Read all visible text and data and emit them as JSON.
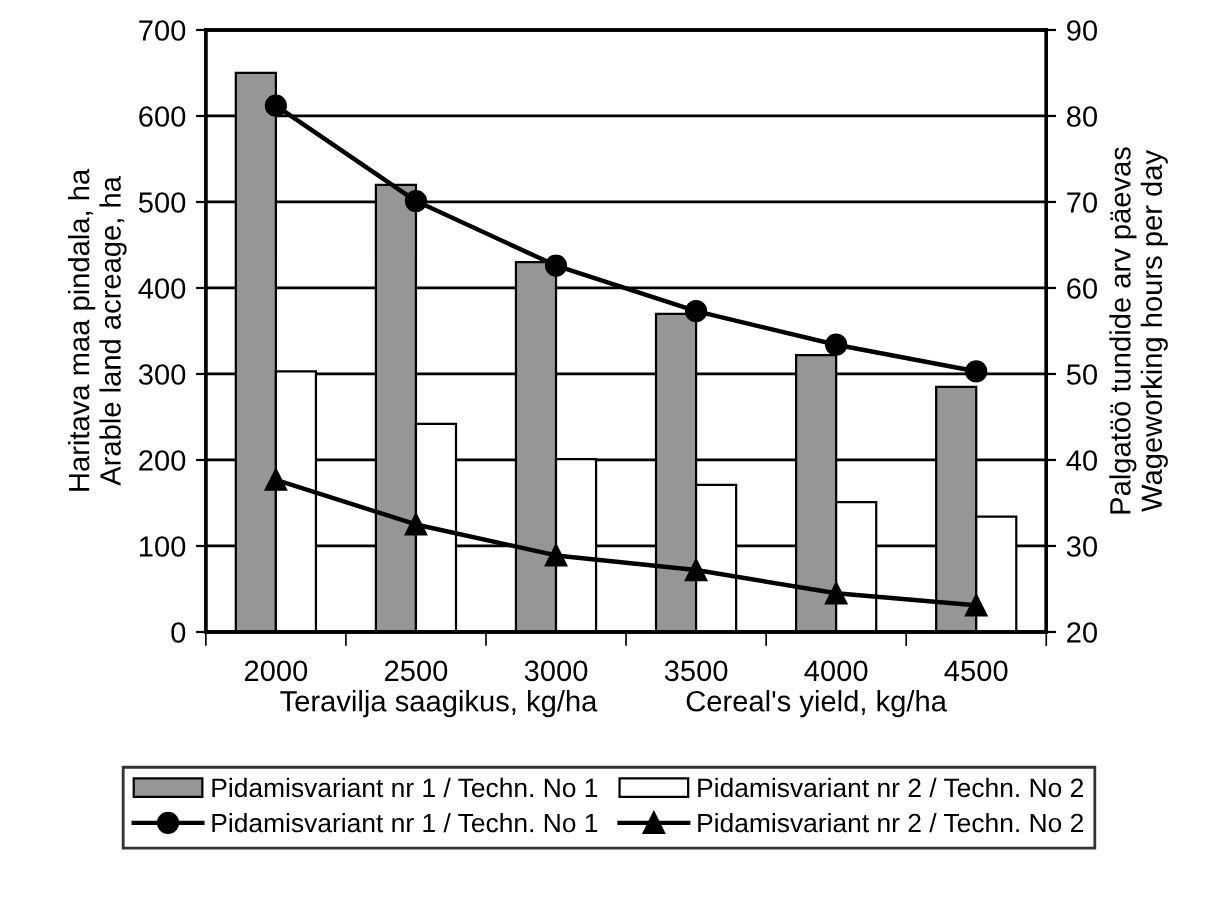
{
  "chart_data": {
    "type": "bar",
    "categories": [
      "2000",
      "2500",
      "3000",
      "3500",
      "4000",
      "4500"
    ],
    "xlabel": [
      "Teravilja saagikus, kg/ha",
      "Cereal's yield, kg/ha"
    ],
    "ylabel": "Haritava maa pindala, ha\nArable land acreage, ha",
    "y2label": "Palgatöö tundide arv päevas\nWageworking hours per day",
    "ylim": [
      0,
      700
    ],
    "yticks": [
      0,
      100,
      200,
      300,
      400,
      500,
      600,
      700
    ],
    "y2lim": [
      20,
      90
    ],
    "y2ticks": [
      20,
      30,
      40,
      50,
      60,
      70,
      80,
      90
    ],
    "grid": "y",
    "legend": "bottom",
    "series": [
      {
        "name": "Pidamisvariant nr 1 / Techn. No 1",
        "color": "#969696",
        "values": [
          650,
          520,
          430,
          370,
          322,
          285
        ]
      },
      {
        "name": "Pidamisvariant nr 2 / Techn. No 2",
        "color": "#ffffff",
        "values": [
          303,
          242,
          201,
          171,
          151,
          134
        ]
      },
      {
        "name": "Pidamisvariant nr 1 / Techn. No 1",
        "type": "line",
        "axis": "y2",
        "color": "#000000",
        "marker": "circle",
        "values": [
          81.2,
          70.1,
          62.6,
          57.3,
          53.4,
          50.3
        ]
      },
      {
        "name": "Pidamisvariant nr 2 / Techn. No 2",
        "type": "line",
        "axis": "y2",
        "color": "#000000",
        "marker": "triangle",
        "values": [
          37.7,
          32.5,
          28.9,
          27.2,
          24.5,
          23.1
        ]
      }
    ]
  }
}
